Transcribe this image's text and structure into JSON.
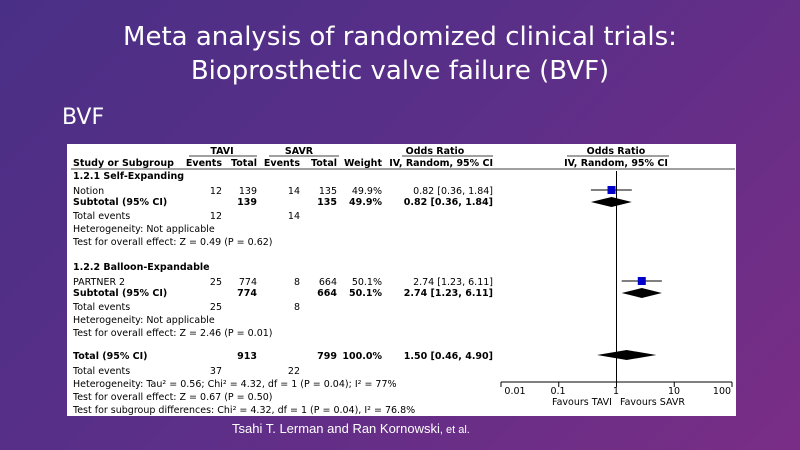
{
  "slide": {
    "title_line1": "Meta analysis of randomized clinical trials:",
    "title_line2": "Bioprosthetic valve failure (BVF)",
    "section": "BVF",
    "footer_authors": "Tsahi T. Lerman and Ran Kornowski",
    "footer_etal": ", et al."
  },
  "chart_data": {
    "type": "forest",
    "headers": {
      "group1": "TAVI",
      "group2": "SAVR",
      "odds_ratio": "Odds Ratio",
      "plot_title": "Odds Ratio",
      "study": "Study or Subgroup",
      "events1": "Events",
      "total1": "Total",
      "events2": "Events",
      "total2": "Total",
      "weight": "Weight",
      "ci_method": "IV, Random, 95% CI",
      "plot_ci_method": "IV, Random, 95% CI"
    },
    "subgroups": [
      {
        "name": "1.2.1 Self-Expanding",
        "study": {
          "label": "Notion",
          "events1": "12",
          "total1": "139",
          "events2": "14",
          "total2": "135",
          "weight": "49.9%",
          "ci_text": "0.82 [0.36, 1.84]",
          "or": 0.82,
          "lo": 0.36,
          "hi": 1.84
        },
        "subtotal": {
          "label": "Subtotal (95% CI)",
          "total1": "139",
          "total2": "135",
          "weight": "49.9%",
          "ci_text": "0.82 [0.36, 1.84]",
          "or": 0.82,
          "lo": 0.36,
          "hi": 1.84
        },
        "total_events": {
          "label": "Total events",
          "events1": "12",
          "events2": "14"
        },
        "heterogeneity": "Heterogeneity: Not applicable",
        "overall": "Test for overall effect: Z = 0.49 (P = 0.62)"
      },
      {
        "name": "1.2.2 Balloon-Expandable",
        "study": {
          "label": "PARTNER 2",
          "events1": "25",
          "total1": "774",
          "events2": "8",
          "total2": "664",
          "weight": "50.1%",
          "ci_text": "2.74 [1.23, 6.11]",
          "or": 2.74,
          "lo": 1.23,
          "hi": 6.11
        },
        "subtotal": {
          "label": "Subtotal (95% CI)",
          "total1": "774",
          "total2": "664",
          "weight": "50.1%",
          "ci_text": "2.74 [1.23, 6.11]",
          "or": 2.74,
          "lo": 1.23,
          "hi": 6.11
        },
        "total_events": {
          "label": "Total events",
          "events1": "25",
          "events2": "8"
        },
        "heterogeneity": "Heterogeneity: Not applicable",
        "overall": "Test for overall effect: Z = 2.46 (P = 0.01)"
      }
    ],
    "total": {
      "label": "Total (95% CI)",
      "total1": "913",
      "total2": "799",
      "weight": "100.0%",
      "ci_text": "1.50 [0.46, 4.90]",
      "or": 1.5,
      "lo": 0.46,
      "hi": 4.9,
      "events_label": "Total events",
      "events1": "37",
      "events2": "22",
      "heterogeneity": "Heterogeneity: Tau² = 0.56; Chi² = 4.32, df = 1 (P = 0.04); I² = 77%",
      "overall": "Test for overall effect: Z = 0.67 (P = 0.50)",
      "subgroup_diff": "Test for subgroup differences: Chi² = 4.32, df = 1 (P = 0.04), I² = 76.8%"
    },
    "axis": {
      "scale": "log",
      "range": [
        0.01,
        100
      ],
      "ticks": [
        0.01,
        0.1,
        1,
        10,
        100
      ],
      "tick_labels": [
        "0.01",
        "0.1",
        "1",
        "10",
        "100"
      ],
      "favours_left": "Favours TAVI",
      "favours_right": "Favours SAVR"
    },
    "colors": {
      "study_marker": "#0000cc",
      "diamond": "#000000"
    }
  }
}
